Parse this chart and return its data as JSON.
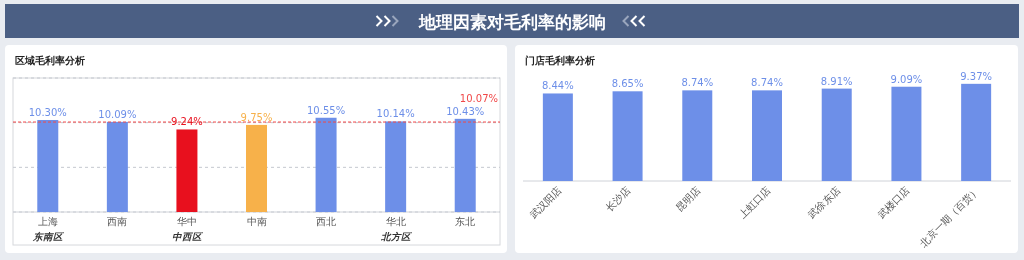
{
  "chart_data": [
    {
      "type": "other",
      "title": "地理因素对毛利率的影响"
    },
    {
      "type": "bar",
      "title": "区域毛利率分析",
      "categories": [
        "上海",
        "西南",
        "华中",
        "中南",
        "西北",
        "华北",
        "东北"
      ],
      "values": [
        10.3,
        10.09,
        9.24,
        9.75,
        10.55,
        10.14,
        10.43
      ],
      "value_labels": [
        "10.30%",
        "10.09%",
        "9.24%",
        "9.75%",
        "10.55%",
        "10.14%",
        "10.43%"
      ],
      "colors": [
        "#6d8fe8",
        "#6d8fe8",
        "#e8101e",
        "#f7b14a",
        "#6d8fe8",
        "#6d8fe8",
        "#6d8fe8"
      ],
      "ylim": [
        0,
        15
      ],
      "yticks": [
        {
          "value": 0,
          "label": null
        },
        {
          "value": 5,
          "label": null
        },
        {
          "value": 10,
          "label": null
        },
        {
          "value": 15,
          "label": null
        }
      ],
      "tick_labels": "x",
      "grid": "y",
      "ref_lines": [
        {
          "axis": "y",
          "value": 10.07,
          "label": "10.07%",
          "color": "#f04848",
          "line_style": "dashed"
        }
      ],
      "annotations": [
        "东南区",
        "中西区",
        "北方区"
      ]
    },
    {
      "type": "bar",
      "title": "门店毛利率分析",
      "categories": [
        "武汉阳店",
        "长沙店",
        "昆明店",
        "上虹口店",
        "武徐东店",
        "武楼口店",
        "北京一期（百货）"
      ],
      "values": [
        8.44,
        8.65,
        8.74,
        8.74,
        8.91,
        9.09,
        9.37
      ],
      "value_labels": [
        "8.44%",
        "8.65%",
        "8.74%",
        "8.74%",
        "8.91%",
        "9.09%",
        "9.37%"
      ],
      "color": "#6d8fe8",
      "tick_labels": "x"
    }
  ]
}
